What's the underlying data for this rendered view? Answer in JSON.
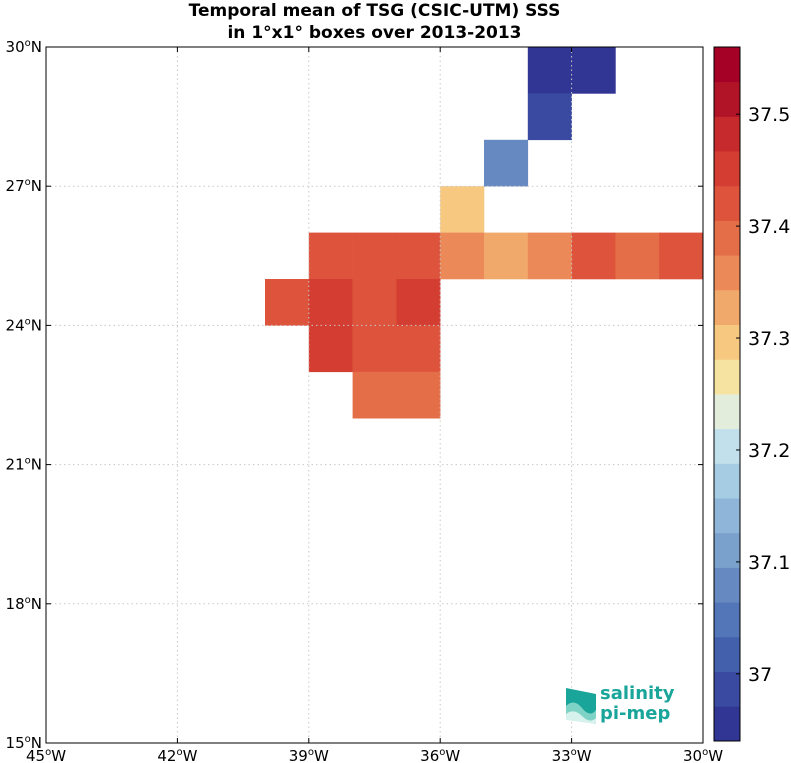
{
  "title_line1": "Temporal mean of TSG (CSIC-UTM) SSS",
  "title_line2": "in 1°x1° boxes over 2013-2013",
  "map": {
    "lon_range": [
      -45,
      -30
    ],
    "lat_range": [
      15,
      30
    ],
    "x_ticks": [
      {
        "value": -45,
        "label": "45°W"
      },
      {
        "value": -42,
        "label": "42°W"
      },
      {
        "value": -39,
        "label": "39°W"
      },
      {
        "value": -36,
        "label": "36°W"
      },
      {
        "value": -33,
        "label": "33°W"
      },
      {
        "value": -30,
        "label": "30°W"
      }
    ],
    "y_ticks": [
      {
        "value": 30,
        "label": "30°N"
      },
      {
        "value": 27,
        "label": "27°N"
      },
      {
        "value": 24,
        "label": "24°N"
      },
      {
        "value": 21,
        "label": "21°N"
      },
      {
        "value": 18,
        "label": "18°N"
      },
      {
        "value": 15,
        "label": "15°N"
      }
    ],
    "grid": true,
    "cells": [
      {
        "lon": -34,
        "lat": 29,
        "sss": 36.96
      },
      {
        "lon": -33,
        "lat": 29,
        "sss": 36.96
      },
      {
        "lon": -34,
        "lat": 28,
        "sss": 37.0
      },
      {
        "lon": -35,
        "lat": 27,
        "sss": 37.07
      },
      {
        "lon": -36,
        "lat": 26,
        "sss": 37.29
      },
      {
        "lon": -39,
        "lat": 25,
        "sss": 37.43
      },
      {
        "lon": -38,
        "lat": 25,
        "sss": 37.43
      },
      {
        "lon": -37,
        "lat": 25,
        "sss": 37.43
      },
      {
        "lon": -36,
        "lat": 25,
        "sss": 37.37
      },
      {
        "lon": -35,
        "lat": 25,
        "sss": 37.32
      },
      {
        "lon": -34,
        "lat": 25,
        "sss": 37.37
      },
      {
        "lon": -33,
        "lat": 25,
        "sss": 37.43
      },
      {
        "lon": -32,
        "lat": 25,
        "sss": 37.4
      },
      {
        "lon": -31,
        "lat": 25,
        "sss": 37.43
      },
      {
        "lon": -40,
        "lat": 24,
        "sss": 37.43
      },
      {
        "lon": -39,
        "lat": 24,
        "sss": 37.46
      },
      {
        "lon": -38,
        "lat": 24,
        "sss": 37.43
      },
      {
        "lon": -37,
        "lat": 24,
        "sss": 37.46
      },
      {
        "lon": -39,
        "lat": 23,
        "sss": 37.46
      },
      {
        "lon": -38,
        "lat": 23,
        "sss": 37.43
      },
      {
        "lon": -37,
        "lat": 23,
        "sss": 37.43
      },
      {
        "lon": -38,
        "lat": 22,
        "sss": 37.4
      },
      {
        "lon": -37,
        "lat": 22,
        "sss": 37.4
      }
    ]
  },
  "colorbar": {
    "range": [
      36.94,
      37.56
    ],
    "ticks": [
      {
        "value": 37.0,
        "label": "37"
      },
      {
        "value": 37.1,
        "label": "37.1"
      },
      {
        "value": 37.2,
        "label": "37.2"
      },
      {
        "value": 37.3,
        "label": "37.3"
      },
      {
        "value": 37.4,
        "label": "37.4"
      },
      {
        "value": 37.5,
        "label": "37.5"
      }
    ],
    "colors": [
      "#313695",
      "#3a4aa0",
      "#4260ac",
      "#5276b8",
      "#6689c2",
      "#7aa0cc",
      "#8fb6d8",
      "#a6cce4",
      "#c2e0ec",
      "#e2eedb",
      "#f6e3a2",
      "#f7c87f",
      "#f1a96b",
      "#eb8a58",
      "#e46e48",
      "#dd533b",
      "#d43d31",
      "#c62a2c",
      "#b11327",
      "#a50026"
    ]
  },
  "logo": {
    "line1": "salinity",
    "line2": "pi-mep"
  }
}
